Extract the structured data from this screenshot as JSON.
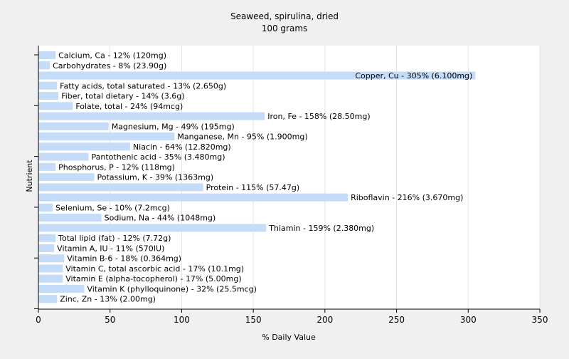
{
  "colors": {
    "background": "#f0f0f0",
    "plot_background": "#ffffff",
    "bar": "#c4dcf7",
    "grid": "#e2e2e2",
    "axis": "#000000"
  },
  "chart_data": {
    "type": "bar",
    "orientation": "horizontal",
    "title": "Seaweed, spirulina, dried",
    "subtitle": "100 grams",
    "xlabel": "% Daily Value",
    "ylabel": "Nutrient",
    "xlim": [
      0,
      350
    ],
    "xticks": [
      0,
      50,
      100,
      150,
      200,
      250,
      300,
      350
    ],
    "grid": true,
    "categories": [
      "Calcium, Ca",
      "Carbohydrates",
      "Copper, Cu",
      "Fatty acids, total saturated",
      "Fiber, total dietary",
      "Folate, total",
      "Iron, Fe",
      "Magnesium, Mg",
      "Manganese, Mn",
      "Niacin",
      "Pantothenic acid",
      "Phosphorus, P",
      "Potassium, K",
      "Protein",
      "Riboflavin",
      "Selenium, Se",
      "Sodium, Na",
      "Thiamin",
      "Total lipid (fat)",
      "Vitamin A, IU",
      "Vitamin B-6",
      "Vitamin C, total ascorbic acid",
      "Vitamin E (alpha-tocopherol)",
      "Vitamin K (phylloquinone)",
      "Zinc, Zn"
    ],
    "values": [
      12,
      8,
      305,
      13,
      14,
      24,
      158,
      49,
      95,
      64,
      35,
      12,
      39,
      115,
      216,
      10,
      44,
      159,
      12,
      11,
      18,
      17,
      17,
      32,
      13
    ],
    "labels": [
      "Calcium, Ca - 12% (120mg)",
      "Carbohydrates - 8% (23.90g)",
      "Copper, Cu - 305% (6.100mg)",
      "Fatty acids, total saturated - 13% (2.650g)",
      "Fiber, total dietary - 14% (3.6g)",
      "Folate, total - 24% (94mcg)",
      "Iron, Fe - 158% (28.50mg)",
      "Magnesium, Mg - 49% (195mg)",
      "Manganese, Mn - 95% (1.900mg)",
      "Niacin - 64% (12.820mg)",
      "Pantothenic acid - 35% (3.480mg)",
      "Phosphorus, P - 12% (118mg)",
      "Potassium, K - 39% (1363mg)",
      "Protein - 115% (57.47g)",
      "Riboflavin - 216% (3.670mg)",
      "Selenium, Se - 10% (7.2mcg)",
      "Sodium, Na - 44% (1048mg)",
      "Thiamin - 159% (2.380mg)",
      "Total lipid (fat) - 12% (7.72g)",
      "Vitamin A, IU - 11% (570IU)",
      "Vitamin B-6 - 18% (0.364mg)",
      "Vitamin C, total ascorbic acid - 17% (10.1mg)",
      "Vitamin E (alpha-tocopherol) - 17% (5.00mg)",
      "Vitamin K (phylloquinone) - 32% (25.5mcg)",
      "Zinc, Zn - 13% (2.00mg)"
    ]
  }
}
